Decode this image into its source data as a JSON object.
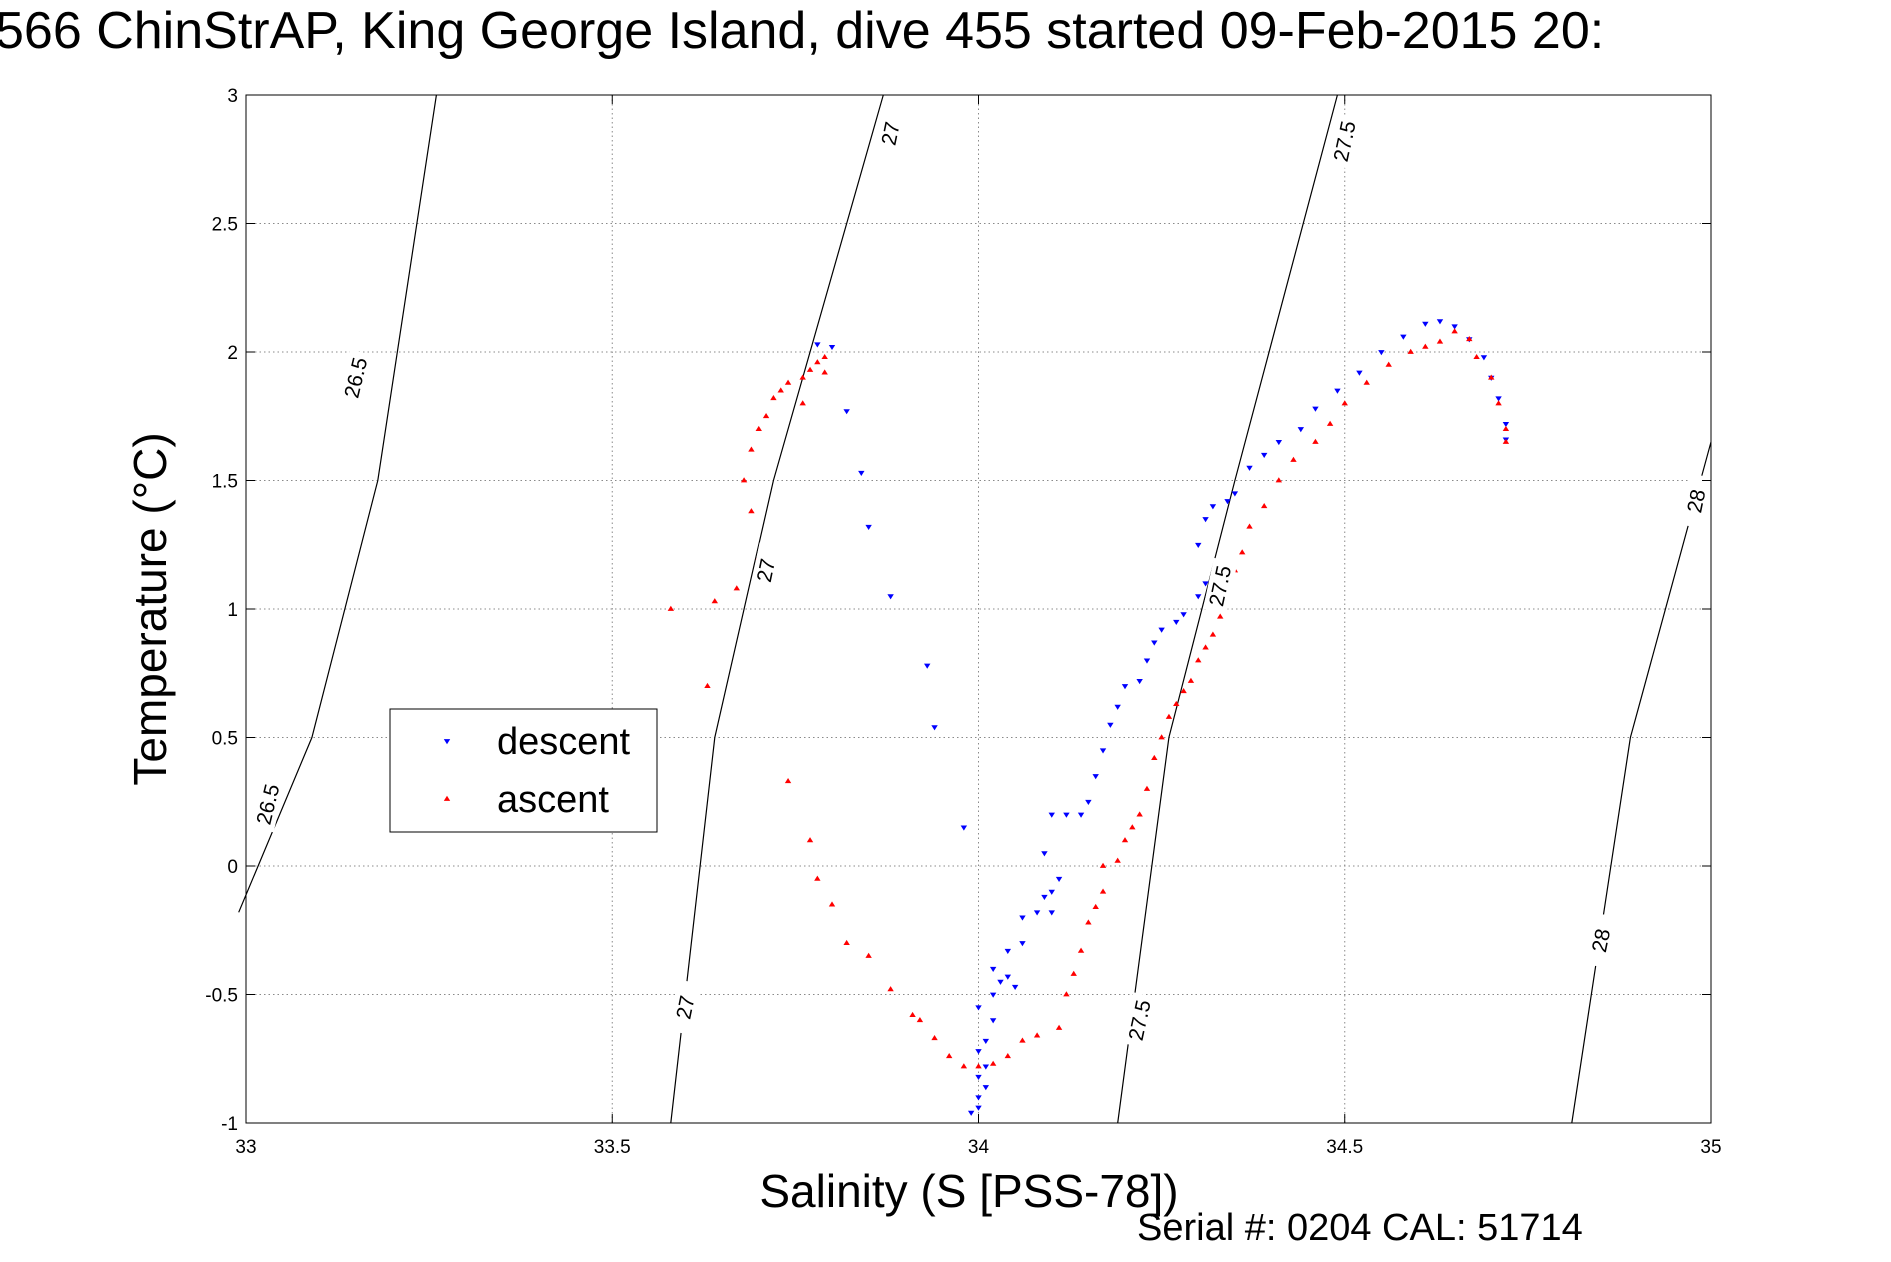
{
  "chart_data": {
    "type": "scatter",
    "title": "566 ChinStrAP, King George Island, dive 455 started 09-Feb-2015 20:",
    "xlabel": "Salinity (S [PSS-78])",
    "ylabel": "Temperature (°C)",
    "xlim": [
      33,
      35
    ],
    "ylim": [
      -1,
      3
    ],
    "xticks": [
      "33",
      "33.5",
      "34",
      "34.5",
      "35"
    ],
    "yticks": [
      "-1",
      "-0.5",
      "0",
      "0.5",
      "1",
      "1.5",
      "2",
      "2.5",
      "3"
    ],
    "grid": true,
    "legend": {
      "placement": "center-left",
      "entries": [
        "descent",
        "ascent"
      ]
    },
    "footer": "Serial #: 0204  CAL: 51714",
    "colors": {
      "descent": "#0000ff",
      "ascent": "#ff0000",
      "isopycnal": "#000000"
    },
    "isopycnals": [
      {
        "label": "26.5",
        "points": [
          [
            32.99,
            -0.18
          ],
          [
            33.09,
            0.5
          ],
          [
            33.18,
            1.5
          ],
          [
            33.26,
            3.0
          ]
        ]
      },
      {
        "label": "27",
        "points": [
          [
            33.58,
            -1.0
          ],
          [
            33.64,
            0.5
          ],
          [
            33.72,
            1.5
          ],
          [
            33.87,
            3.0
          ]
        ]
      },
      {
        "label": "27.5",
        "points": [
          [
            34.19,
            -1.0
          ],
          [
            34.26,
            0.5
          ],
          [
            34.35,
            1.5
          ],
          [
            34.49,
            3.0
          ]
        ]
      },
      {
        "label": "28",
        "points": [
          [
            34.81,
            -1.0
          ],
          [
            34.89,
            0.5
          ],
          [
            35.0,
            1.65
          ]
        ]
      }
    ],
    "isopycnal_labels": [
      {
        "text": "26.5",
        "x": 33.15,
        "y": 1.9
      },
      {
        "text": "26.5",
        "x": 33.03,
        "y": 0.24
      },
      {
        "text": "27",
        "x": 33.88,
        "y": 2.85
      },
      {
        "text": "27",
        "x": 33.71,
        "y": 1.15
      },
      {
        "text": "27",
        "x": 33.6,
        "y": -0.55
      },
      {
        "text": "27.5",
        "x": 34.5,
        "y": 2.82
      },
      {
        "text": "27.5",
        "x": 34.33,
        "y": 1.09
      },
      {
        "text": "27.5",
        "x": 34.22,
        "y": -0.6
      },
      {
        "text": "28",
        "x": 34.98,
        "y": 1.42
      },
      {
        "text": "28",
        "x": 34.85,
        "y": -0.29
      }
    ],
    "series": [
      {
        "name": "descent",
        "marker": "triangle-down",
        "points": [
          [
            33.99,
            -0.96
          ],
          [
            34.0,
            -0.94
          ],
          [
            34.0,
            -0.9
          ],
          [
            34.01,
            -0.86
          ],
          [
            34.0,
            -0.82
          ],
          [
            34.01,
            -0.78
          ],
          [
            34.0,
            -0.72
          ],
          [
            34.01,
            -0.68
          ],
          [
            34.02,
            -0.6
          ],
          [
            34.0,
            -0.55
          ],
          [
            34.02,
            -0.5
          ],
          [
            34.03,
            -0.45
          ],
          [
            34.02,
            -0.4
          ],
          [
            34.04,
            -0.43
          ],
          [
            34.05,
            -0.47
          ],
          [
            34.04,
            -0.33
          ],
          [
            34.06,
            -0.3
          ],
          [
            34.06,
            -0.2
          ],
          [
            34.08,
            -0.18
          ],
          [
            34.09,
            -0.12
          ],
          [
            34.1,
            -0.18
          ],
          [
            34.1,
            -0.1
          ],
          [
            34.11,
            -0.05
          ],
          [
            34.09,
            0.05
          ],
          [
            34.1,
            0.2
          ],
          [
            34.12,
            0.2
          ],
          [
            34.14,
            0.2
          ],
          [
            34.15,
            0.25
          ],
          [
            34.16,
            0.35
          ],
          [
            34.17,
            0.45
          ],
          [
            34.18,
            0.55
          ],
          [
            34.19,
            0.62
          ],
          [
            34.2,
            0.7
          ],
          [
            34.22,
            0.72
          ],
          [
            34.23,
            0.8
          ],
          [
            34.24,
            0.87
          ],
          [
            34.25,
            0.92
          ],
          [
            34.27,
            0.95
          ],
          [
            34.28,
            0.98
          ],
          [
            34.3,
            1.05
          ],
          [
            34.31,
            1.1
          ],
          [
            34.3,
            1.25
          ],
          [
            34.31,
            1.35
          ],
          [
            34.32,
            1.4
          ],
          [
            34.34,
            1.42
          ],
          [
            34.35,
            1.45
          ],
          [
            34.37,
            1.55
          ],
          [
            34.39,
            1.6
          ],
          [
            34.41,
            1.65
          ],
          [
            34.44,
            1.7
          ],
          [
            34.46,
            1.78
          ],
          [
            34.49,
            1.85
          ],
          [
            34.52,
            1.92
          ],
          [
            34.55,
            2.0
          ],
          [
            34.58,
            2.06
          ],
          [
            34.61,
            2.11
          ],
          [
            34.63,
            2.12
          ],
          [
            34.65,
            2.1
          ],
          [
            34.67,
            2.05
          ],
          [
            34.69,
            1.98
          ],
          [
            34.7,
            1.9
          ],
          [
            34.71,
            1.82
          ],
          [
            34.72,
            1.72
          ],
          [
            34.72,
            1.66
          ],
          [
            33.78,
            2.03
          ],
          [
            33.8,
            2.02
          ],
          [
            33.82,
            1.77
          ],
          [
            33.84,
            1.53
          ],
          [
            33.85,
            1.32
          ],
          [
            33.88,
            1.05
          ],
          [
            33.93,
            0.78
          ],
          [
            33.94,
            0.54
          ],
          [
            33.98,
            0.15
          ]
        ]
      },
      {
        "name": "ascent",
        "marker": "triangle-up",
        "points": [
          [
            33.58,
            1.0
          ],
          [
            33.63,
            0.7
          ],
          [
            33.64,
            1.03
          ],
          [
            33.67,
            1.08
          ],
          [
            33.7,
            1.2
          ],
          [
            33.69,
            1.38
          ],
          [
            33.68,
            1.5
          ],
          [
            33.69,
            1.62
          ],
          [
            33.7,
            1.7
          ],
          [
            33.71,
            1.75
          ],
          [
            33.72,
            1.82
          ],
          [
            33.73,
            1.85
          ],
          [
            33.74,
            1.88
          ],
          [
            33.76,
            1.9
          ],
          [
            33.77,
            1.93
          ],
          [
            33.78,
            1.96
          ],
          [
            33.79,
            1.98
          ],
          [
            33.76,
            1.8
          ],
          [
            33.79,
            1.92
          ],
          [
            33.74,
            0.33
          ],
          [
            33.77,
            0.1
          ],
          [
            33.78,
            -0.05
          ],
          [
            33.8,
            -0.15
          ],
          [
            33.82,
            -0.3
          ],
          [
            33.85,
            -0.35
          ],
          [
            33.88,
            -0.48
          ],
          [
            33.91,
            -0.58
          ],
          [
            33.92,
            -0.6
          ],
          [
            33.94,
            -0.67
          ],
          [
            33.96,
            -0.74
          ],
          [
            33.98,
            -0.78
          ],
          [
            34.0,
            -0.78
          ],
          [
            34.02,
            -0.77
          ],
          [
            34.04,
            -0.74
          ],
          [
            34.06,
            -0.68
          ],
          [
            34.08,
            -0.66
          ],
          [
            34.11,
            -0.63
          ],
          [
            34.12,
            -0.5
          ],
          [
            34.13,
            -0.42
          ],
          [
            34.14,
            -0.33
          ],
          [
            34.15,
            -0.22
          ],
          [
            34.16,
            -0.16
          ],
          [
            34.17,
            -0.1
          ],
          [
            34.17,
            0.0
          ],
          [
            34.19,
            0.02
          ],
          [
            34.2,
            0.1
          ],
          [
            34.21,
            0.15
          ],
          [
            34.22,
            0.2
          ],
          [
            34.23,
            0.3
          ],
          [
            34.24,
            0.42
          ],
          [
            34.25,
            0.5
          ],
          [
            34.26,
            0.58
          ],
          [
            34.27,
            0.63
          ],
          [
            34.28,
            0.68
          ],
          [
            34.29,
            0.72
          ],
          [
            34.3,
            0.8
          ],
          [
            34.31,
            0.85
          ],
          [
            34.32,
            0.9
          ],
          [
            34.33,
            0.97
          ],
          [
            34.34,
            1.08
          ],
          [
            34.35,
            1.15
          ],
          [
            34.36,
            1.22
          ],
          [
            34.37,
            1.32
          ],
          [
            34.39,
            1.4
          ],
          [
            34.41,
            1.5
          ],
          [
            34.43,
            1.58
          ],
          [
            34.46,
            1.65
          ],
          [
            34.48,
            1.72
          ],
          [
            34.5,
            1.8
          ],
          [
            34.53,
            1.88
          ],
          [
            34.56,
            1.95
          ],
          [
            34.59,
            2.0
          ],
          [
            34.61,
            2.02
          ],
          [
            34.63,
            2.04
          ],
          [
            34.65,
            2.08
          ],
          [
            34.67,
            2.05
          ],
          [
            34.68,
            1.98
          ],
          [
            34.7,
            1.9
          ],
          [
            34.71,
            1.8
          ],
          [
            34.72,
            1.7
          ],
          [
            34.72,
            1.65
          ]
        ]
      }
    ]
  }
}
